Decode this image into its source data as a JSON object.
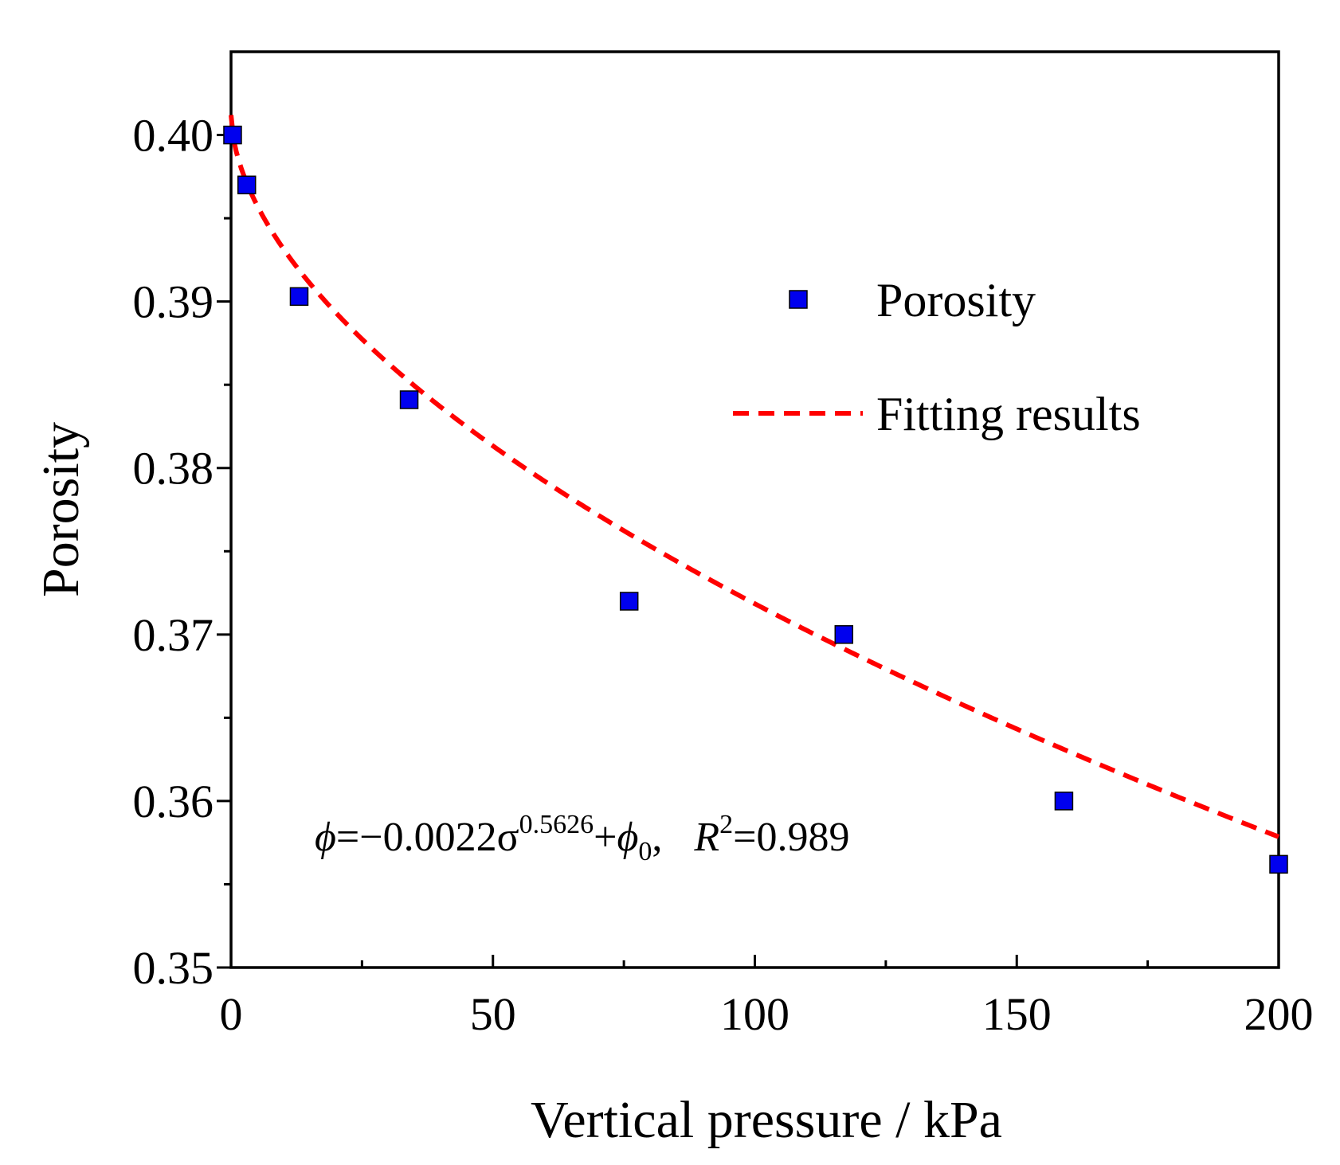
{
  "chart_data": {
    "type": "scatter",
    "xlabel": "Vertical pressure / kPa",
    "ylabel": "Porosity",
    "xlim": [
      0,
      200
    ],
    "ylim": [
      0.35,
      0.405
    ],
    "x_ticks": [
      0,
      50,
      100,
      150,
      200
    ],
    "x_tick_labels": [
      "0",
      "50",
      "100",
      "150",
      "200"
    ],
    "y_ticks": [
      0.35,
      0.36,
      0.37,
      0.38,
      0.39,
      0.4
    ],
    "y_tick_labels": [
      "0.35",
      "0.36",
      "0.37",
      "0.38",
      "0.39",
      "0.40"
    ],
    "grid": false,
    "legend_position": "top-right",
    "series": [
      {
        "name": "Porosity",
        "kind": "scatter",
        "marker": "square",
        "color": "#0000ee",
        "x": [
          0.3,
          3,
          13,
          34,
          76,
          117,
          159,
          200
        ],
        "y": [
          0.4,
          0.397,
          0.3903,
          0.3841,
          0.372,
          0.37,
          0.36,
          0.3562
        ]
      },
      {
        "name": "Fitting results",
        "kind": "line",
        "style": "dashed",
        "color": "#ff0000",
        "model": {
          "coefficient": -0.0022,
          "exponent": 0.5626,
          "phi0": 0.4012
        }
      }
    ],
    "annotation": {
      "phi": "ϕ",
      "equals_coef": "=−0.0022σ",
      "exponent_text": "0.5626",
      "plus": "+",
      "phi0_symbol": "ϕ",
      "phi0_sub": "0",
      "sep": ",",
      "r2_symbol": "R",
      "r2_sup": "2",
      "r2_value": "=0.989"
    }
  }
}
